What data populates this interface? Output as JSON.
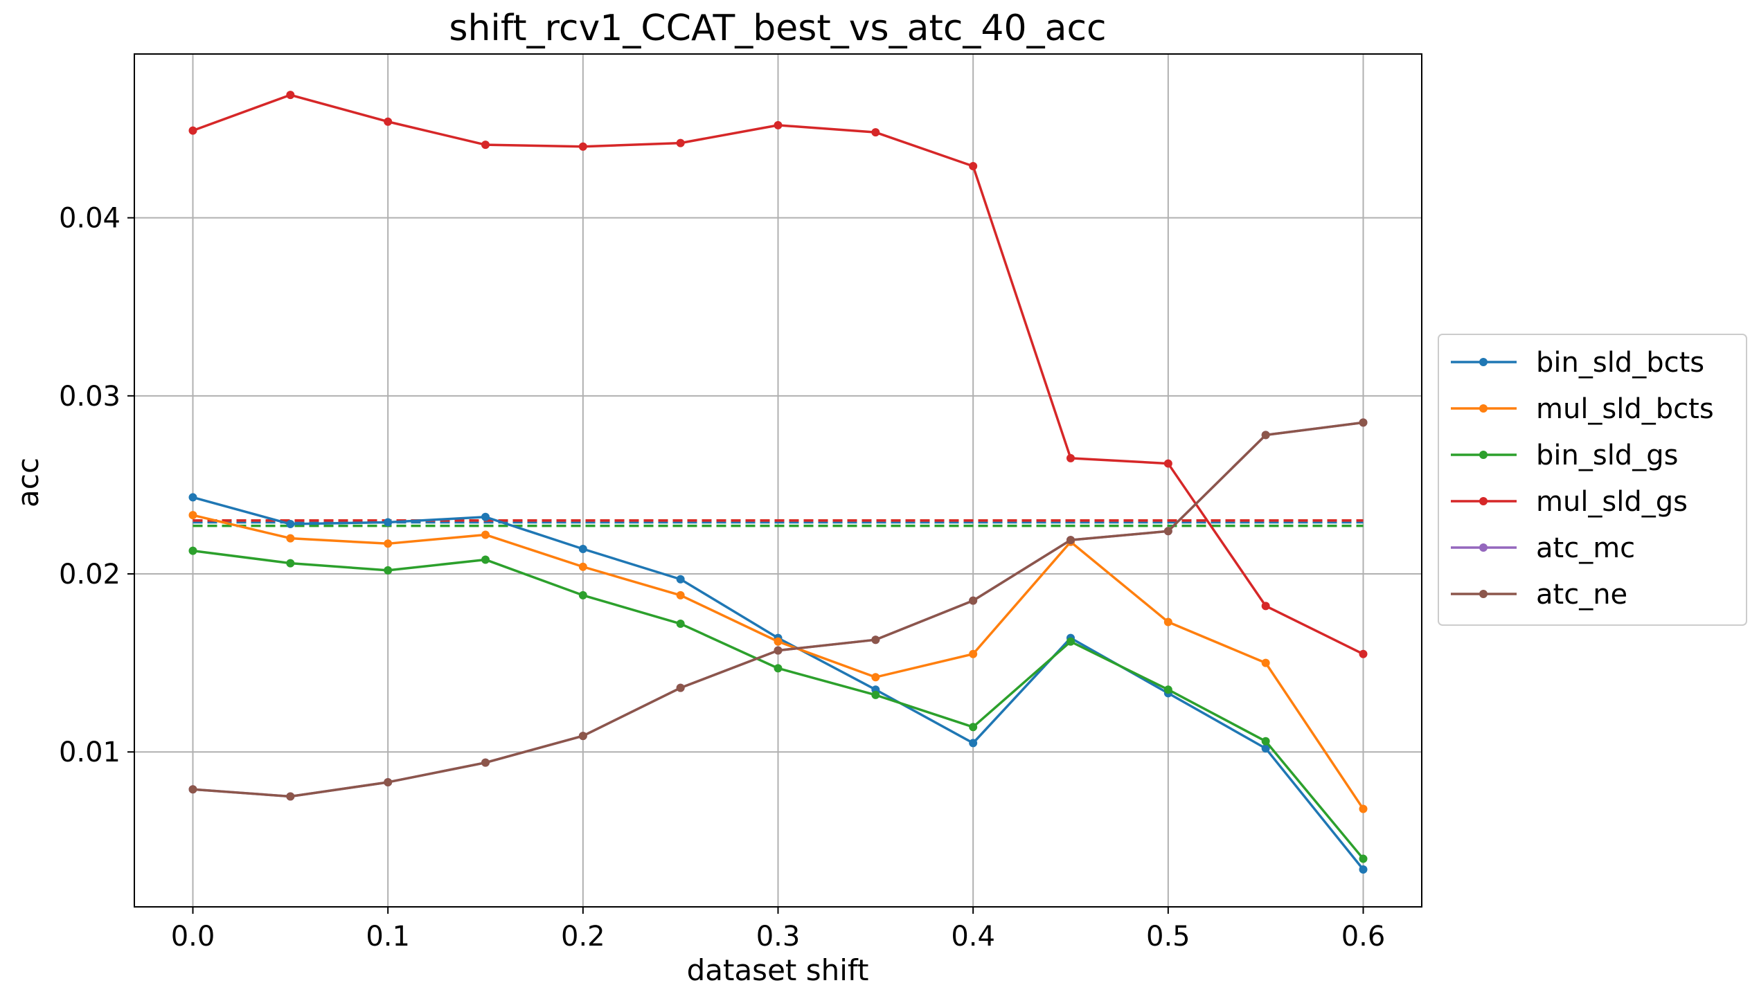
{
  "chart_data": {
    "type": "line",
    "title": "shift_rcv1_CCAT_best_vs_atc_40_acc",
    "xlabel": "dataset shift",
    "ylabel": "acc",
    "x": [
      0.0,
      0.05,
      0.1,
      0.15,
      0.2,
      0.25,
      0.3,
      0.35,
      0.4,
      0.45,
      0.5,
      0.55,
      0.6
    ],
    "xlim": [
      -0.03,
      0.63
    ],
    "ylim": [
      0.0013,
      0.0492
    ],
    "xticks": [
      "0.0",
      "0.1",
      "0.2",
      "0.3",
      "0.4",
      "0.5",
      "0.6"
    ],
    "xtick_values": [
      0.0,
      0.1,
      0.2,
      0.3,
      0.4,
      0.5,
      0.6
    ],
    "yticks": [
      "0.01",
      "0.02",
      "0.03",
      "0.04"
    ],
    "ytick_values": [
      0.01,
      0.02,
      0.03,
      0.04
    ],
    "grid": true,
    "legend_position": "right, outside plot",
    "series": [
      {
        "name": "bin_sld_bcts",
        "color": "#1f77b4",
        "marker": "dot",
        "values": [
          0.0243,
          0.0228,
          0.0229,
          0.0232,
          0.0214,
          0.0197,
          0.0164,
          0.0135,
          0.0105,
          0.0164,
          0.0133,
          0.0102,
          0.0034
        ],
        "reference": 0.0229
      },
      {
        "name": "mul_sld_bcts",
        "color": "#ff7f0e",
        "marker": "dot",
        "values": [
          0.0233,
          0.022,
          0.0217,
          0.0222,
          0.0204,
          0.0188,
          0.0162,
          0.0142,
          0.0155,
          0.0218,
          0.0173,
          0.015,
          0.0068
        ],
        "reference": 0.023
      },
      {
        "name": "bin_sld_gs",
        "color": "#2ca02c",
        "marker": "dot",
        "values": [
          0.0213,
          0.0206,
          0.0202,
          0.0208,
          0.0188,
          0.0172,
          0.0147,
          0.0132,
          0.0114,
          0.0162,
          0.0135,
          0.0106,
          0.004
        ],
        "reference": 0.0227
      },
      {
        "name": "mul_sld_gs",
        "color": "#d62728",
        "marker": "dot",
        "values": [
          0.0449,
          0.0469,
          0.0454,
          0.0441,
          0.044,
          0.0442,
          0.0452,
          0.0448,
          0.0429,
          0.0265,
          0.0262,
          0.0182,
          0.0155
        ],
        "reference": 0.023
      },
      {
        "name": "atc_mc",
        "color": "#9467bd",
        "marker": "dot",
        "values": [
          0.0079,
          0.0075,
          0.0083,
          0.0094,
          0.0109,
          0.0136,
          0.0157,
          0.0163,
          0.0185,
          0.0219,
          0.0224,
          0.0278,
          0.0285
        ]
      },
      {
        "name": "atc_ne",
        "color": "#8c564b",
        "marker": "dot",
        "values": [
          0.0079,
          0.0075,
          0.0083,
          0.0094,
          0.0109,
          0.0136,
          0.0157,
          0.0163,
          0.0185,
          0.0219,
          0.0224,
          0.0278,
          0.0285
        ]
      }
    ]
  }
}
